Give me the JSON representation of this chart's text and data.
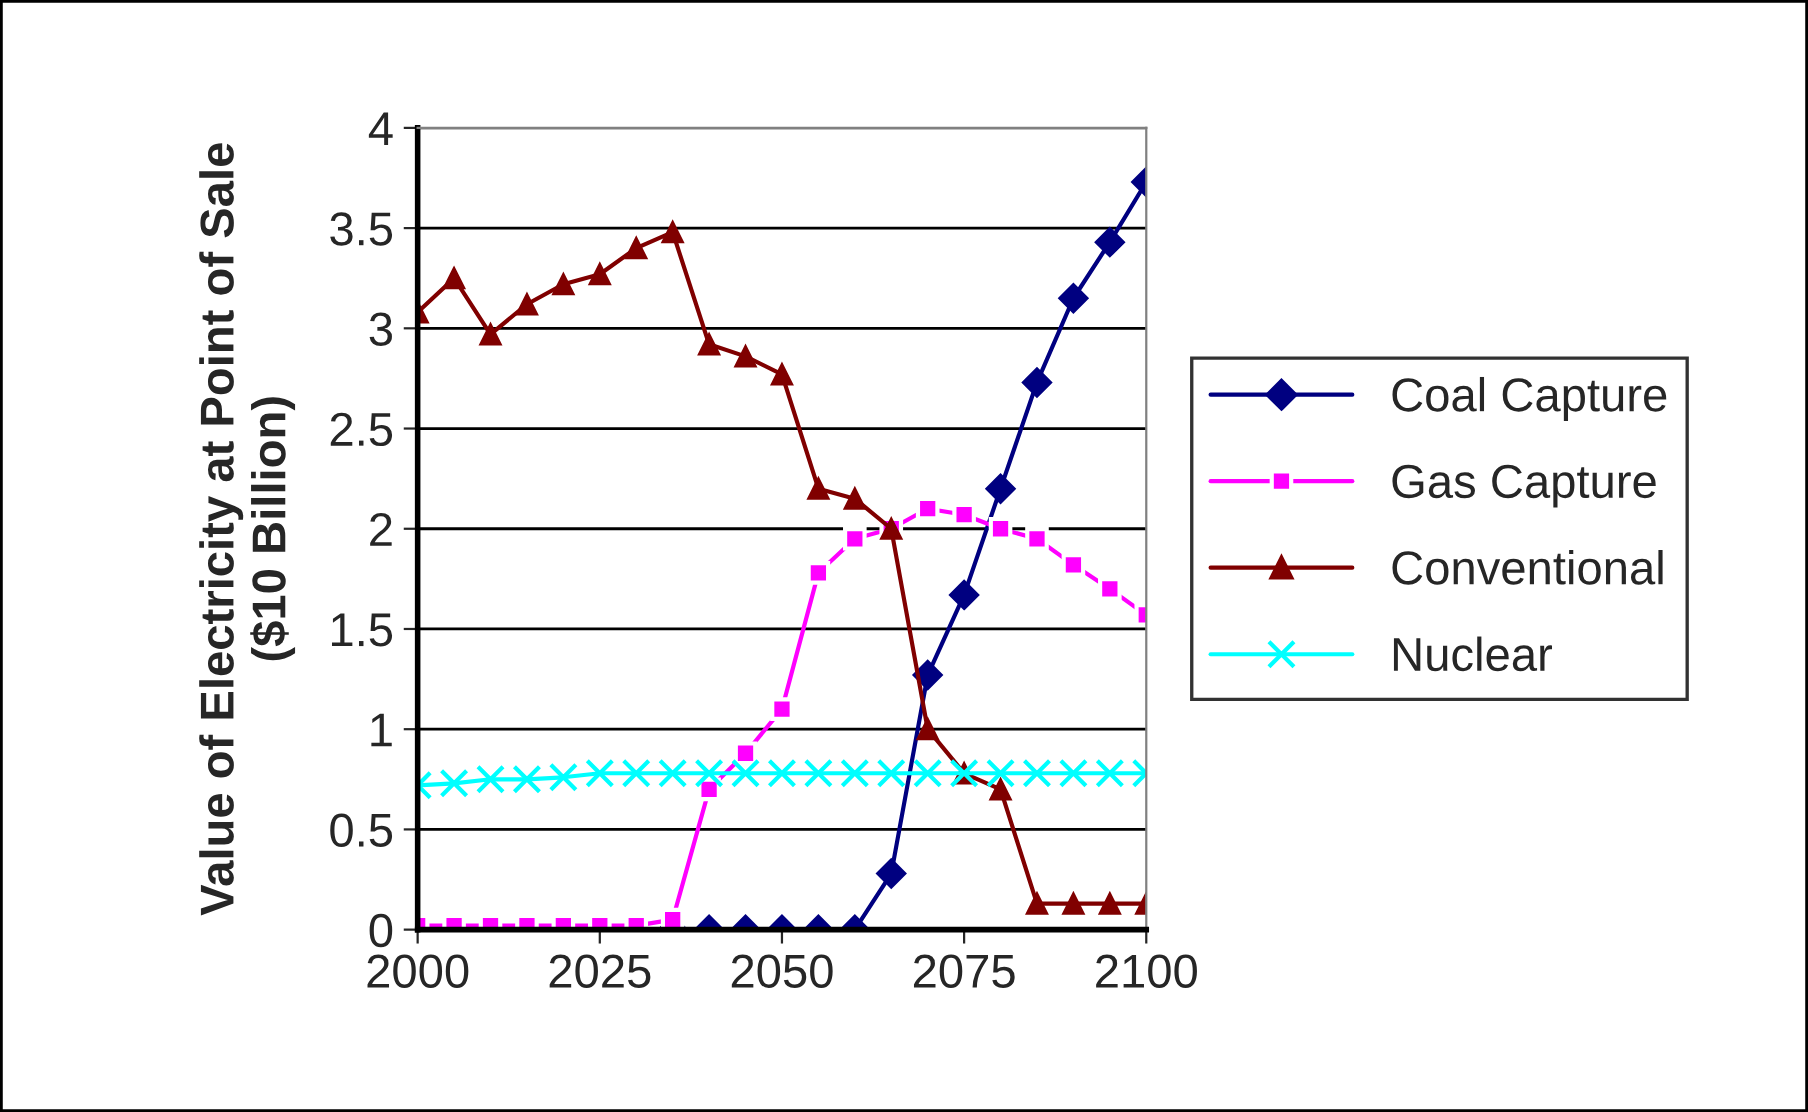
{
  "chart_data": {
    "type": "line",
    "ylabel": "Value of Electricity at Point of Sale\n($10 Billion)",
    "x": [
      2000,
      2005,
      2010,
      2015,
      2020,
      2025,
      2030,
      2035,
      2040,
      2045,
      2050,
      2055,
      2060,
      2065,
      2070,
      2075,
      2080,
      2085,
      2090,
      2095,
      2100
    ],
    "series": [
      {
        "name": "Coal Capture",
        "color": "#000080",
        "marker": "diamond",
        "values": [
          null,
          null,
          null,
          null,
          null,
          null,
          null,
          0,
          0,
          0,
          0,
          0,
          0,
          0.28,
          1.27,
          1.67,
          2.2,
          2.73,
          3.15,
          3.43,
          3.73
        ]
      },
      {
        "name": "Gas Capture",
        "color": "#ff00ff",
        "marker": "square",
        "values": [
          0.02,
          0.02,
          0.02,
          0.02,
          0.02,
          0.02,
          0.02,
          0.05,
          0.7,
          0.88,
          1.1,
          1.78,
          1.95,
          2.0,
          2.1,
          2.07,
          2.0,
          1.95,
          1.82,
          1.7,
          1.57
        ]
      },
      {
        "name": "Conventional",
        "color": "#800000",
        "marker": "triangle",
        "values": [
          3.08,
          3.25,
          2.97,
          3.12,
          3.22,
          3.27,
          3.4,
          3.48,
          2.92,
          2.86,
          2.77,
          2.2,
          2.15,
          2.0,
          1.0,
          0.78,
          0.7,
          0.13,
          0.13,
          0.13,
          0.13
        ]
      },
      {
        "name": "Nuclear",
        "color": "#00ffff",
        "marker": "cross",
        "values": [
          0.72,
          0.73,
          0.75,
          0.75,
          0.76,
          0.78,
          0.78,
          0.78,
          0.78,
          0.78,
          0.78,
          0.78,
          0.78,
          0.78,
          0.78,
          0.78,
          0.78,
          0.78,
          0.78,
          0.78,
          0.78
        ]
      }
    ],
    "xlim": [
      2000,
      2100
    ],
    "xticks": [
      2000,
      2025,
      2050,
      2075,
      2100
    ],
    "ylim": [
      0,
      4
    ],
    "yticks": [
      0,
      0.5,
      1,
      1.5,
      2,
      2.5,
      3,
      3.5,
      4
    ],
    "grid": "y",
    "legend": "right"
  }
}
